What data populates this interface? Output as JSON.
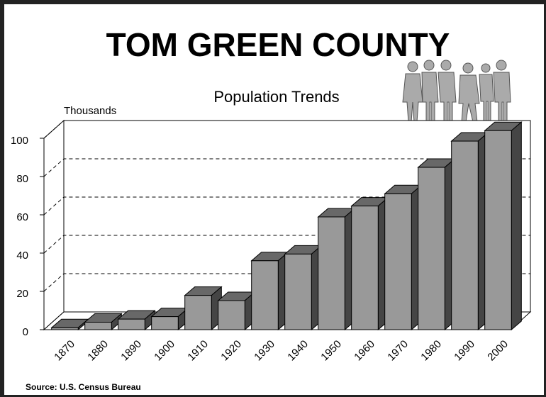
{
  "chart_data": {
    "type": "bar3d",
    "title": "TOM GREEN COUNTY",
    "subtitle": "Population Trends",
    "y_label": "Thousands",
    "source": "Source: U.S. Census Bureau",
    "categories": [
      "1870",
      "1880",
      "1890",
      "1900",
      "1910",
      "1920",
      "1930",
      "1940",
      "1950",
      "1960",
      "1970",
      "1980",
      "1990",
      "2000"
    ],
    "values": [
      1,
      3.9,
      5.5,
      6.8,
      17.9,
      15.2,
      36,
      39.5,
      58.9,
      64.6,
      71,
      84.8,
      98.5,
      104
    ],
    "color": "#999999",
    "ylim": [
      0,
      100
    ],
    "yticks": [
      0,
      20,
      40,
      60,
      80,
      100
    ],
    "grid": true
  }
}
